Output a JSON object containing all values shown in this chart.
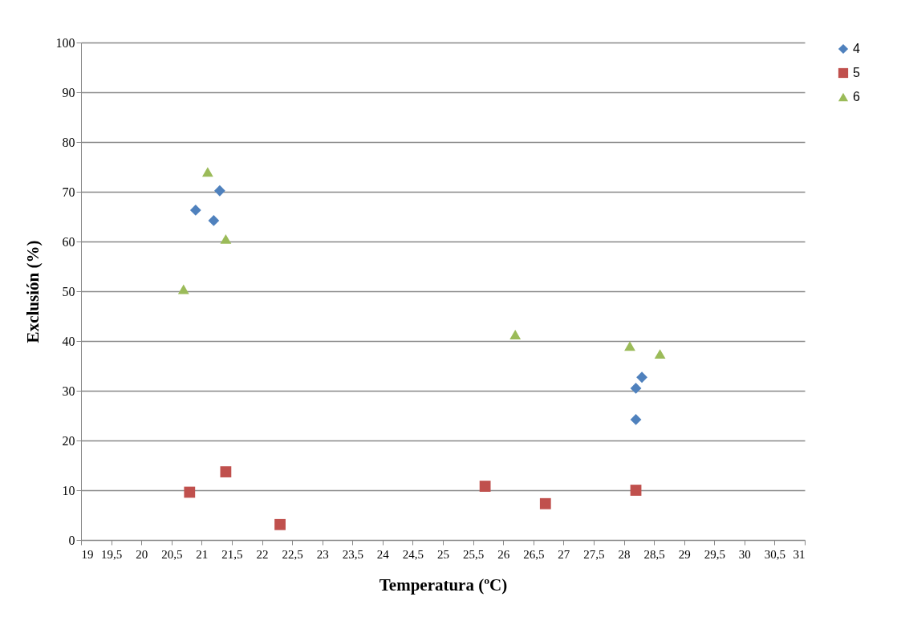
{
  "chart_data": {
    "type": "scatter",
    "xlabel": "Temperatura (ºC)",
    "ylabel": "Exclusión (%)",
    "xlim": [
      19,
      31
    ],
    "xticks": [
      19,
      {
        "value": 19.5,
        "label": "19,5"
      },
      20,
      {
        "value": 20.5,
        "label": "20,5"
      },
      21,
      {
        "value": 21.5,
        "label": "21,5"
      },
      22,
      {
        "value": 22.5,
        "label": "22,5"
      },
      23,
      {
        "value": 23.5,
        "label": "23,5"
      },
      24,
      {
        "value": 24.5,
        "label": "24,5"
      },
      25,
      {
        "value": 25.5,
        "label": "25,5"
      },
      26,
      {
        "value": 26.5,
        "label": "26,5"
      },
      27,
      {
        "value": 27.5,
        "label": "27,5"
      },
      28,
      {
        "value": 28.5,
        "label": "28,5"
      },
      29,
      {
        "value": 29.5,
        "label": "29,5"
      },
      30,
      {
        "value": 30.5,
        "label": "30,5"
      },
      31
    ],
    "ylim": [
      0,
      100
    ],
    "yticks": [
      0,
      10,
      20,
      30,
      40,
      50,
      60,
      70,
      80,
      90,
      100
    ],
    "grid": "y",
    "legend": "right",
    "series": [
      {
        "name": "4",
        "color": "#4f81bd",
        "marker": "diamond",
        "x": [
          20.9,
          21.2,
          21.3,
          28.2,
          28.3,
          28.2
        ],
        "values": [
          66.3,
          64.2,
          70.2,
          30.5,
          32.7,
          24.2
        ]
      },
      {
        "name": "5",
        "color": "#c0504d",
        "marker": "square",
        "x": [
          20.8,
          21.4,
          22.3,
          25.7,
          26.7,
          28.2
        ],
        "values": [
          9.6,
          13.7,
          3.1,
          10.8,
          7.3,
          10.0
        ]
      },
      {
        "name": "6",
        "color": "#9bbb59",
        "marker": "triangle",
        "x": [
          21.1,
          21.4,
          20.7,
          26.2,
          28.1,
          28.6
        ],
        "values": [
          74.0,
          60.5,
          50.4,
          41.3,
          39.0,
          37.4
        ]
      }
    ]
  }
}
